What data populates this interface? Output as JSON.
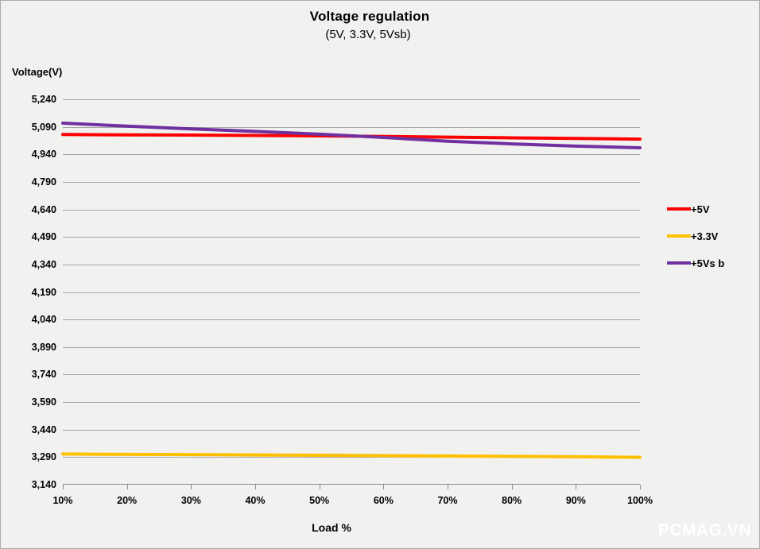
{
  "header": {
    "title": "Voltage regulation",
    "subtitle": "(5V, 3.3V, 5Vsb)"
  },
  "watermark": "PCMAG.VN",
  "colors": {
    "background": "#f1f1f0",
    "border": "#ababab",
    "gridline": "#a6a6a6",
    "axis_line": "#8c8c8c",
    "text": "#000000",
    "series_5v": "#ff0000",
    "series_3v3": "#ffc000",
    "series_5vsb": "#7030a0",
    "watermark_text": "#ffffff"
  },
  "chart_data": {
    "type": "line",
    "title": "Voltage regulation",
    "subtitle": "(5V, 3.3V, 5Vsb)",
    "xlabel": "Load %",
    "ylabel": "Voltage(V)",
    "categories": [
      "10%",
      "20%",
      "30%",
      "40%",
      "50%",
      "60%",
      "70%",
      "80%",
      "90%",
      "100%"
    ],
    "ylim": [
      3140,
      5240
    ],
    "ytick_step": 150,
    "ytick_labels": [
      "5,240",
      "5,090",
      "4,940",
      "4,790",
      "4,640",
      "4,490",
      "4,340",
      "4,190",
      "4,040",
      "3,890",
      "3,740",
      "3,590",
      "3,440",
      "3,290",
      "3,140"
    ],
    "grid": "horizontal-only",
    "legend_position": "right",
    "series": [
      {
        "name": "+5V",
        "color": "#ff0000",
        "values": [
          5048,
          5046,
          5045,
          5043,
          5041,
          5038,
          5034,
          5030,
          5027,
          5023
        ]
      },
      {
        "name": "+3.3V",
        "color": "#ffc000",
        "values": [
          3307,
          3305,
          3304,
          3302,
          3300,
          3298,
          3296,
          3294,
          3292,
          3289
        ]
      },
      {
        "name": "+5Vs b",
        "color": "#7030a0",
        "values": [
          5110,
          5094,
          5079,
          5065,
          5050,
          5032,
          5012,
          4997,
          4985,
          4976
        ]
      }
    ]
  }
}
